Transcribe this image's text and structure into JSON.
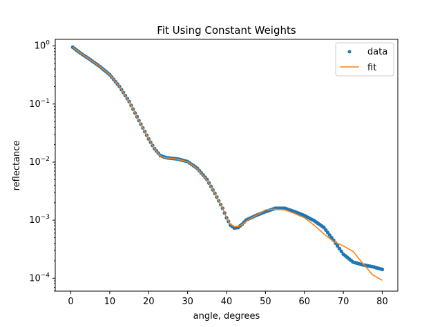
{
  "chart_data": {
    "type": "scatter",
    "title": "Fit Using Constant Weights",
    "xlabel": "angle, degrees",
    "ylabel": "reflectance",
    "xlim": [
      -4,
      84
    ],
    "ylim": [
      6e-05,
      1.3
    ],
    "yscale": "log",
    "grid": false,
    "legend_position": "top-right",
    "x_ticks": [
      0,
      10,
      20,
      30,
      40,
      50,
      60,
      70,
      80
    ],
    "x_tick_labels": [
      "0",
      "10",
      "20",
      "30",
      "40",
      "50",
      "60",
      "70",
      "80"
    ],
    "y_ticks": [
      0.0001,
      0.001,
      0.01,
      0.1,
      1
    ],
    "y_tick_labels": [
      {
        "base": "10",
        "exp": "−4"
      },
      {
        "base": "10",
        "exp": "−3"
      },
      {
        "base": "10",
        "exp": "−2"
      },
      {
        "base": "10",
        "exp": "−1"
      },
      {
        "base": "10",
        "exp": "0"
      }
    ],
    "series": [
      {
        "name": "data",
        "kind": "scatter",
        "color": "#1f77b4",
        "x": [
          0.5,
          2.5,
          5,
          7.5,
          10,
          12.5,
          15,
          17.5,
          20,
          21.5,
          23,
          24,
          25,
          27.5,
          30,
          32.5,
          35,
          37,
          39,
          40,
          41,
          42,
          43,
          44,
          45,
          47.5,
          50,
          52.5,
          55,
          57.5,
          60,
          62.5,
          65,
          67.5,
          70,
          72.5,
          75,
          77.5,
          80
        ],
        "y": [
          0.95,
          0.75,
          0.58,
          0.44,
          0.32,
          0.2,
          0.11,
          0.052,
          0.025,
          0.017,
          0.013,
          0.0122,
          0.0118,
          0.0113,
          0.0102,
          0.0078,
          0.005,
          0.0029,
          0.0016,
          0.0011,
          0.00082,
          0.00073,
          0.00075,
          0.00085,
          0.001,
          0.0012,
          0.0014,
          0.0016,
          0.0016,
          0.0014,
          0.0012,
          0.00098,
          0.00075,
          0.00045,
          0.00026,
          0.00019,
          0.00017,
          0.000158,
          0.000142
        ]
      },
      {
        "name": "fit",
        "kind": "line",
        "color": "#ff7f0e",
        "x": [
          0.5,
          2.5,
          5,
          7.5,
          10,
          12.5,
          15,
          17.5,
          20,
          21.5,
          23,
          24,
          25,
          27.5,
          30,
          32.5,
          35,
          37,
          39,
          40,
          41,
          42,
          43,
          44,
          45,
          47.5,
          50,
          52.5,
          55,
          57.5,
          60,
          62.5,
          65,
          67.5,
          70,
          72.5,
          75,
          77.5,
          80
        ],
        "y": [
          0.95,
          0.75,
          0.58,
          0.44,
          0.32,
          0.2,
          0.11,
          0.052,
          0.025,
          0.017,
          0.0128,
          0.012,
          0.0117,
          0.0112,
          0.0101,
          0.0077,
          0.0049,
          0.0029,
          0.0016,
          0.0011,
          0.00085,
          0.00078,
          0.00078,
          0.00084,
          0.00095,
          0.0012,
          0.0015,
          0.00155,
          0.0015,
          0.0013,
          0.0011,
          0.00082,
          0.00058,
          0.00043,
          0.00036,
          0.00029,
          0.00018,
          0.000115,
          9.2e-05
        ]
      }
    ]
  }
}
